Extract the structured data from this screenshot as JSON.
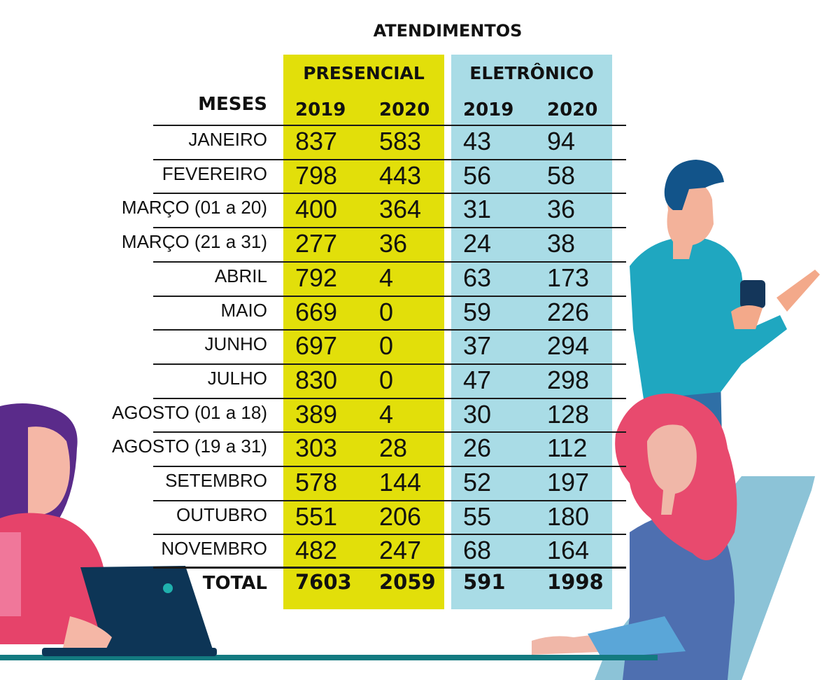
{
  "title": "ATENDIMENTOS",
  "months_header": "MESES",
  "total_label": "TOTAL",
  "colors": {
    "presencial_bg": "#e2df0a",
    "eletronico_bg": "#a9dce6"
  },
  "chart_data": {
    "type": "table",
    "title": "ATENDIMENTOS",
    "row_header": "MESES",
    "groups": [
      {
        "name": "PRESENCIAL",
        "years": [
          "2019",
          "2020"
        ]
      },
      {
        "name": "ELETRÔNICO",
        "years": [
          "2019",
          "2020"
        ]
      }
    ],
    "rows": [
      {
        "month": "JANEIRO",
        "values": [
          837,
          583,
          43,
          94
        ]
      },
      {
        "month": "FEVEREIRO",
        "values": [
          798,
          443,
          56,
          58
        ]
      },
      {
        "month": "MARÇO (01 a 20)",
        "values": [
          400,
          364,
          31,
          36
        ]
      },
      {
        "month": "MARÇO (21 a 31)",
        "values": [
          277,
          36,
          24,
          38
        ]
      },
      {
        "month": "ABRIL",
        "values": [
          792,
          4,
          63,
          173
        ]
      },
      {
        "month": "MAIO",
        "values": [
          669,
          0,
          59,
          226
        ]
      },
      {
        "month": "JUNHO",
        "values": [
          697,
          0,
          37,
          294
        ]
      },
      {
        "month": "JULHO",
        "values": [
          830,
          0,
          47,
          298
        ]
      },
      {
        "month": "AGOSTO (01 a 18)",
        "values": [
          389,
          4,
          30,
          128
        ]
      },
      {
        "month": "AGOSTO (19 a 31)",
        "values": [
          303,
          28,
          26,
          112
        ]
      },
      {
        "month": "SETEMBRO",
        "values": [
          578,
          144,
          52,
          197
        ]
      },
      {
        "month": "OUTUBRO",
        "values": [
          551,
          206,
          55,
          180
        ]
      },
      {
        "month": "NOVEMBRO",
        "values": [
          482,
          247,
          68,
          164
        ]
      }
    ],
    "totals": [
      7603,
      2059,
      591,
      1998
    ]
  }
}
